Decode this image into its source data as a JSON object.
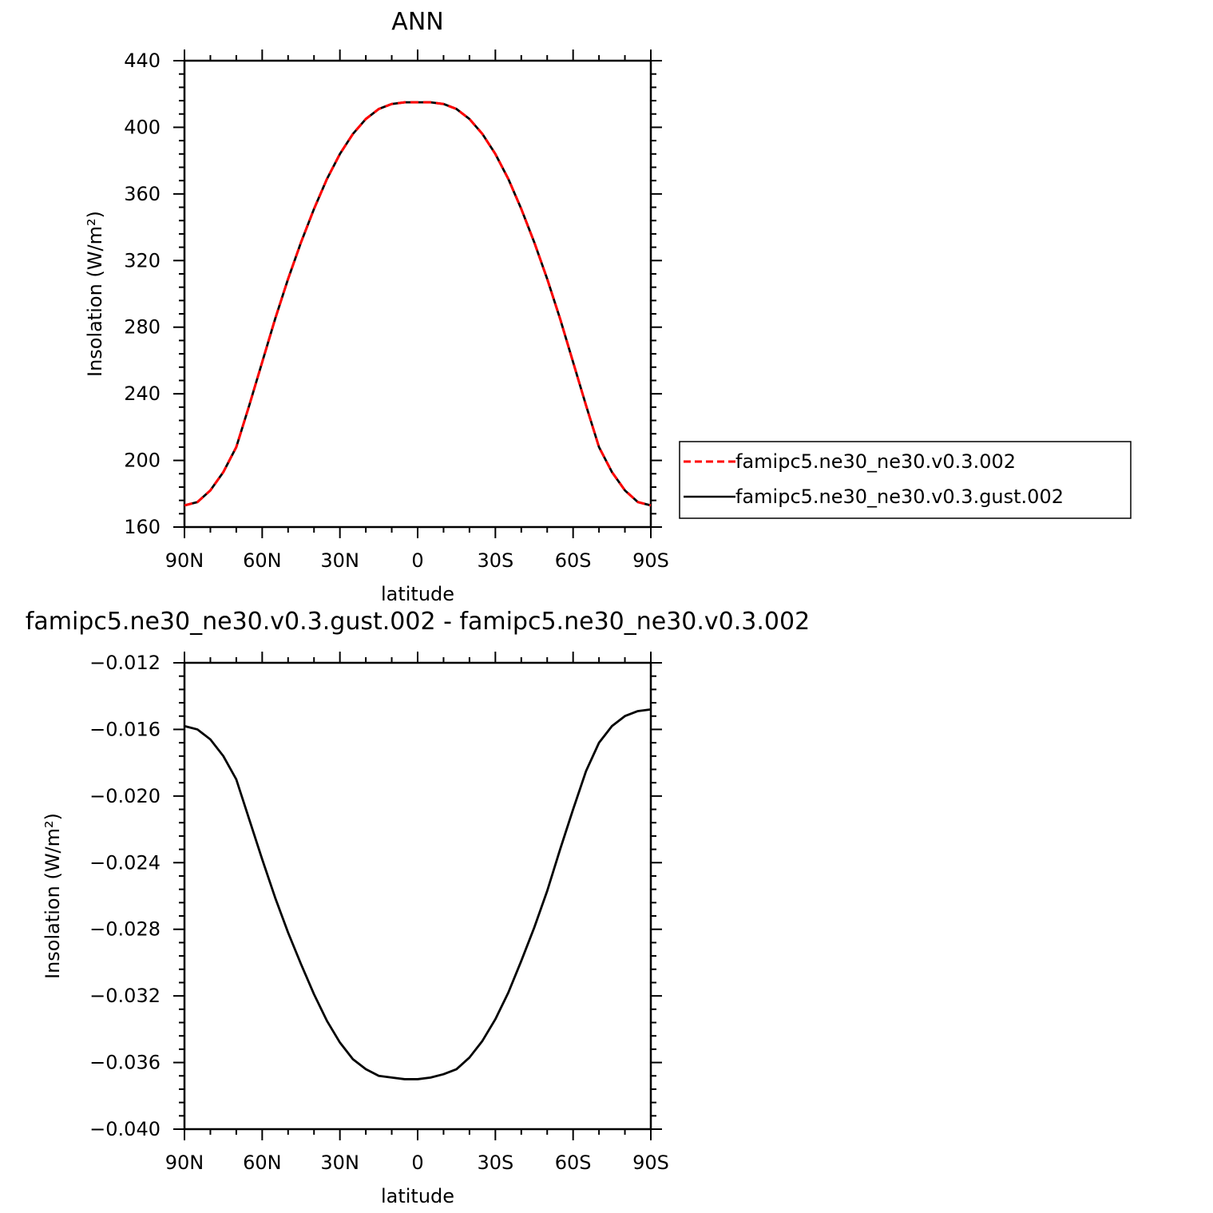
{
  "chart_data": [
    {
      "type": "line",
      "title": "ANN",
      "xlabel": "latitude",
      "ylabel": "Insolation  (W/m²)",
      "xticks": [
        "90N",
        "60N",
        "30N",
        "0",
        "30S",
        "60S",
        "90S"
      ],
      "xlim": [
        -90,
        90
      ],
      "ylim": [
        160,
        440
      ],
      "yticks": [
        "160",
        "200",
        "240",
        "280",
        "320",
        "360",
        "400",
        "440"
      ],
      "x": [
        -90,
        -85,
        -80,
        -75,
        -70,
        -65,
        -60,
        -55,
        -50,
        -45,
        -40,
        -35,
        -30,
        -25,
        -20,
        -15,
        -10,
        -5,
        0,
        5,
        10,
        15,
        20,
        25,
        30,
        35,
        40,
        45,
        50,
        55,
        60,
        65,
        70,
        75,
        80,
        85,
        90
      ],
      "series": [
        {
          "name": "famipc5.ne30_ne30.v0.3.002",
          "color": "#ff0000",
          "dash": true,
          "values": [
            173,
            175,
            182,
            193,
            208,
            233,
            259,
            285,
            309,
            331,
            351,
            369,
            384,
            396,
            405,
            411,
            414,
            415,
            415,
            415,
            414,
            411,
            405,
            396,
            384,
            369,
            351,
            331,
            309,
            285,
            259,
            233,
            208,
            193,
            182,
            175,
            173
          ]
        },
        {
          "name": "famipc5.ne30_ne30.v0.3.gust.002",
          "color": "#000000",
          "dash": false,
          "values": [
            173,
            175,
            182,
            193,
            208,
            233,
            259,
            285,
            309,
            331,
            351,
            369,
            384,
            396,
            405,
            411,
            414,
            415,
            415,
            415,
            414,
            411,
            405,
            396,
            384,
            369,
            351,
            331,
            309,
            285,
            259,
            233,
            208,
            193,
            182,
            175,
            173
          ]
        }
      ],
      "legend": [
        "famipc5.ne30_ne30.v0.3.002",
        "famipc5.ne30_ne30.v0.3.gust.002"
      ]
    },
    {
      "type": "line",
      "title": "famipc5.ne30_ne30.v0.3.gust.002 - famipc5.ne30_ne30.v0.3.002",
      "xlabel": "latitude",
      "ylabel": "Insolation  (W/m²)",
      "xticks": [
        "90N",
        "60N",
        "30N",
        "0",
        "30S",
        "60S",
        "90S"
      ],
      "xlim": [
        -90,
        90
      ],
      "ylim": [
        -0.04,
        -0.012
      ],
      "yticks": [
        "-0.040",
        "-0.036",
        "-0.032",
        "-0.028",
        "-0.024",
        "-0.020",
        "-0.016",
        "-0.012"
      ],
      "x": [
        -90,
        -85,
        -80,
        -75,
        -70,
        -65,
        -60,
        -55,
        -50,
        -45,
        -40,
        -35,
        -30,
        -25,
        -20,
        -15,
        -10,
        -5,
        0,
        5,
        10,
        15,
        20,
        25,
        30,
        35,
        40,
        45,
        50,
        55,
        60,
        65,
        70,
        75,
        80,
        85,
        90
      ],
      "series": [
        {
          "color": "#000000",
          "dash": false,
          "values": [
            -0.0158,
            -0.016,
            -0.0166,
            -0.0176,
            -0.019,
            -0.0214,
            -0.0238,
            -0.0261,
            -0.0282,
            -0.0301,
            -0.0319,
            -0.0335,
            -0.0348,
            -0.0358,
            -0.0364,
            -0.0368,
            -0.0369,
            -0.037,
            -0.037,
            -0.0369,
            -0.0367,
            -0.0364,
            -0.0357,
            -0.0347,
            -0.0334,
            -0.0318,
            -0.0299,
            -0.0279,
            -0.0257,
            -0.0232,
            -0.0208,
            -0.0185,
            -0.0168,
            -0.0158,
            -0.0152,
            -0.0149,
            -0.0148
          ]
        }
      ]
    }
  ]
}
